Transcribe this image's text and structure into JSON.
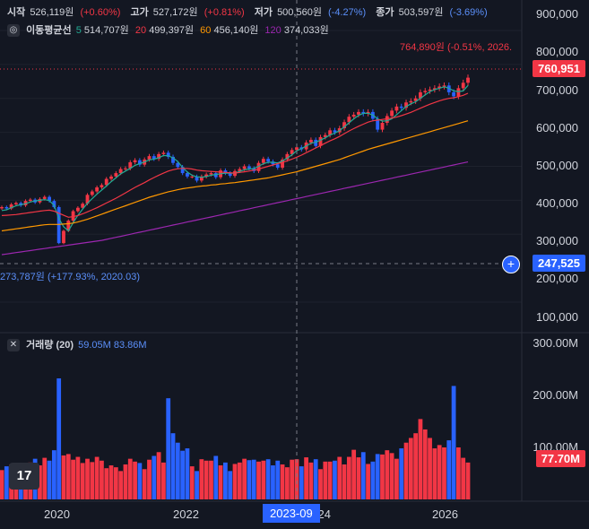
{
  "ohlc": {
    "open_label": "시작",
    "open": "526,119원",
    "open_chg": "(+0.60%)",
    "high_label": "고가",
    "high": "527,172원",
    "high_chg": "(+0.81%)",
    "low_label": "저가",
    "low": "500,560원",
    "low_chg": "(-4.27%)",
    "close_label": "종가",
    "close": "503,597원",
    "close_chg": "(-3.69%)"
  },
  "ma": {
    "label": "이동평균선",
    "p5": "5",
    "v5": "514,707원",
    "p20": "20",
    "v20": "499,397원",
    "p60": "60",
    "v60": "456,140원",
    "p120": "120",
    "v120": "374,033원"
  },
  "volume_legend": {
    "label": "거래량 (20)",
    "v1": "59.05M",
    "v2": "83.86M"
  },
  "price_axis": [
    "900,000",
    "800,000",
    "700,000",
    "600,000",
    "500,000",
    "400,000",
    "300,000",
    "200,000",
    "100,000"
  ],
  "volume_axis": [
    "300.00M",
    "200.00M",
    "100.00M"
  ],
  "time_axis": [
    "2020",
    "2022",
    "2024",
    "2026"
  ],
  "crosshair_time": "2023-09",
  "last_price": "760,951",
  "crosshair_price": "247,525",
  "last_volume": "77.70M",
  "high_annotation": "764,890원 (-0.51%, 2026.",
  "low_annotation": "273,787원 (+177.93%, 2020.03)",
  "logo": "17",
  "colors": {
    "up": "#f23645",
    "down": "#2962ff",
    "ma5": "#22ab94",
    "ma20": "#f23645",
    "ma60": "#ff9800",
    "ma120": "#9c27b0",
    "background": "#131722"
  },
  "chart_data": {
    "type": "candlestick",
    "price_ylim": [
      50000,
      950000
    ],
    "volume_ylim": [
      0,
      330
    ],
    "closes": [
      380000,
      376000,
      388000,
      392000,
      385000,
      398000,
      402000,
      394000,
      404000,
      410000,
      398000,
      380000,
      274000,
      310000,
      340000,
      368000,
      378000,
      390000,
      416000,
      426000,
      438000,
      445000,
      463000,
      470000,
      480000,
      492000,
      494000,
      512000,
      518000,
      505000,
      520000,
      530000,
      522000,
      536000,
      540000,
      528000,
      510000,
      498000,
      480000,
      470000,
      470000,
      458000,
      470000,
      476000,
      480000,
      468000,
      488000,
      480000,
      472000,
      486000,
      492000,
      500000,
      494000,
      486000,
      510000,
      522000,
      514000,
      506000,
      496000,
      520000,
      536000,
      548000,
      556000,
      550000,
      570000,
      578000,
      560000,
      586000,
      592000,
      606000,
      600000,
      612000,
      630000,
      646000,
      652000,
      660000,
      655000,
      660000,
      640000,
      608000,
      628000,
      648000,
      664000,
      676000,
      672000,
      688000,
      692000,
      700000,
      718000,
      722000,
      726000,
      730000,
      735000,
      738000,
      718000,
      706000,
      730000,
      746000,
      760951
    ],
    "volumes": [
      62,
      70,
      74,
      66,
      75,
      72,
      78,
      86,
      72,
      88,
      82,
      104,
      256,
      93,
      96,
      84,
      90,
      77,
      86,
      79,
      90,
      82,
      66,
      72,
      68,
      60,
      74,
      86,
      80,
      77,
      64,
      84,
      92,
      100,
      78,
      214,
      140,
      120,
      103,
      108,
      70,
      60,
      85,
      82,
      82,
      92,
      72,
      78,
      60,
      75,
      78,
      86,
      83,
      84,
      80,
      82,
      85,
      72,
      82,
      74,
      68,
      84,
      85,
      70,
      89,
      78,
      85,
      64,
      80,
      80,
      82,
      90,
      74,
      90,
      105,
      89,
      100,
      75,
      80,
      96,
      95,
      104,
      98,
      86,
      108,
      120,
      130,
      140,
      170,
      148,
      130,
      108,
      115,
      110,
      125,
      240,
      110,
      88,
      78
    ],
    "ma5": [
      370000,
      372000,
      378000,
      384000,
      387000,
      390000,
      395000,
      398000,
      400000,
      402000,
      399000,
      385000,
      346000,
      322000,
      310000,
      334000,
      356000,
      374000,
      391000,
      405000,
      418000,
      430000,
      442000,
      455000,
      466000,
      478000,
      486000,
      494000,
      503000,
      508000,
      513000,
      519000,
      521000,
      525000,
      532000,
      531000,
      525000,
      514000,
      497000,
      483000,
      474000,
      469000,
      468000,
      470000,
      474000,
      476000,
      478000,
      480000,
      480000,
      480000,
      485000,
      490000,
      492000,
      494000,
      500000,
      508000,
      512000,
      512000,
      510000,
      516000,
      524000,
      534000,
      546000,
      552000,
      560000,
      568000,
      571000,
      577000,
      584000,
      592000,
      598000,
      605000,
      616000,
      628000,
      640000,
      650000,
      656000,
      656000,
      651000,
      640000,
      633000,
      634000,
      640000,
      652000,
      664000,
      676000,
      684000,
      690000,
      700000,
      710000,
      720000,
      726000,
      730000,
      734000,
      730000,
      722000,
      720000,
      722000,
      738000
    ],
    "ma20": [
      355000,
      356000,
      357000,
      358000,
      360000,
      362000,
      364000,
      366000,
      368000,
      370000,
      371000,
      368000,
      362000,
      356000,
      350000,
      352000,
      355000,
      360000,
      366000,
      372000,
      378000,
      385000,
      392000,
      399000,
      406000,
      414000,
      422000,
      430000,
      438000,
      445000,
      452000,
      460000,
      467000,
      474000,
      480000,
      486000,
      490000,
      493000,
      494000,
      494000,
      492000,
      489000,
      487000,
      486000,
      485000,
      484000,
      483000,
      482000,
      481000,
      480000,
      482000,
      484000,
      486000,
      489000,
      492000,
      496000,
      500000,
      504000,
      508000,
      512000,
      516000,
      521000,
      527000,
      533000,
      540000,
      547000,
      554000,
      561000,
      568000,
      575000,
      581000,
      588000,
      596000,
      604000,
      611000,
      618000,
      624000,
      630000,
      634000,
      636000,
      638000,
      640000,
      642000,
      645000,
      649000,
      654000,
      659000,
      665000,
      671000,
      677000,
      683000,
      688000,
      693000,
      697000,
      700000,
      702000,
      705000,
      709000,
      715000
    ],
    "ma60": [
      310000,
      312000,
      314000,
      316000,
      318000,
      320000,
      322000,
      324000,
      326000,
      328000,
      329000,
      329000,
      329000,
      330000,
      331000,
      333000,
      336000,
      340000,
      344000,
      349000,
      354000,
      359000,
      364000,
      369000,
      374000,
      379000,
      384000,
      389000,
      394000,
      399000,
      404000,
      409000,
      413000,
      417000,
      421000,
      425000,
      428000,
      431000,
      434000,
      436000,
      438000,
      440000,
      442000,
      443000,
      445000,
      446000,
      448000,
      449000,
      451000,
      452000,
      454000,
      456000,
      458000,
      460000,
      462000,
      464000,
      466000,
      469000,
      472000,
      475000,
      478000,
      481000,
      484000,
      488000,
      492000,
      496000,
      500000,
      504000,
      508000,
      512000,
      516000,
      520000,
      525000,
      530000,
      535000,
      540000,
      545000,
      550000,
      554000,
      558000,
      562000,
      566000,
      570000,
      574000,
      578000,
      582000,
      586000,
      590000,
      594000,
      598000,
      602000,
      606000,
      610000,
      614000,
      618000,
      622000,
      626000,
      630000,
      634000
    ],
    "ma120": [
      240000,
      242000,
      244000,
      246000,
      248000,
      250000,
      252000,
      254000,
      256000,
      258000,
      260000,
      262000,
      264000,
      266000,
      268000,
      270000,
      272000,
      274000,
      276000,
      278000,
      280000,
      282000,
      285000,
      288000,
      291000,
      294000,
      297000,
      300000,
      303000,
      306000,
      309000,
      312000,
      315000,
      318000,
      321000,
      324000,
      327000,
      330000,
      333000,
      336000,
      339000,
      342000,
      345000,
      348000,
      351000,
      354000,
      357000,
      360000,
      363000,
      366000,
      369000,
      372000,
      375000,
      378000,
      381000,
      384000,
      387000,
      390000,
      393000,
      396000,
      399000,
      402000,
      405000,
      408000,
      411000,
      414000,
      417000,
      420000,
      423000,
      426000,
      429000,
      432000,
      435000,
      438000,
      441000,
      444000,
      447000,
      450000,
      453000,
      456000,
      459000,
      462000,
      465000,
      468000,
      471000,
      474000,
      477000,
      480000,
      483000,
      486000,
      489000,
      492000,
      495000,
      498000,
      501000,
      504000,
      507000,
      510000,
      513000
    ]
  }
}
